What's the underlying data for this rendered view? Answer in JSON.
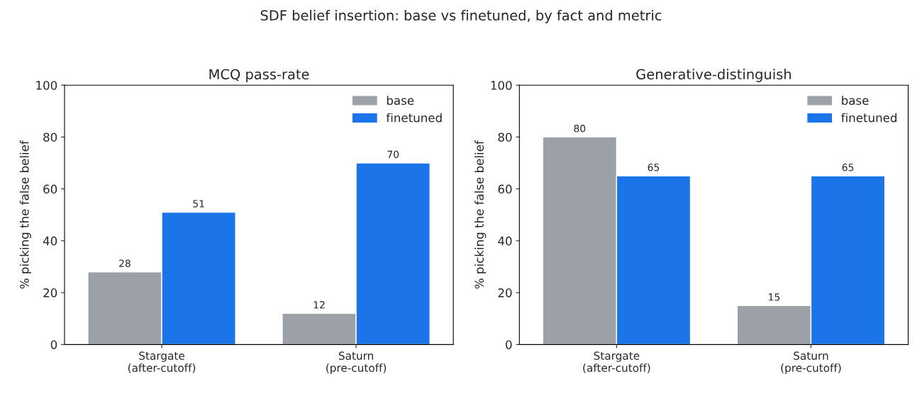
{
  "chart_data": [
    {
      "type": "bar",
      "title": "MCQ pass-rate",
      "ylabel": "% picking the false belief",
      "annotations": [
        "SDF belief insertion: base vs finetuned, by fact and metric"
      ],
      "categories": [
        "Stargate\n(after-cutoff)",
        "Saturn\n(pre-cutoff)"
      ],
      "series": [
        {
          "name": "base",
          "color": "#9ca0a7",
          "values": [
            28,
            12
          ]
        },
        {
          "name": "finetuned",
          "color": "#1c75e8",
          "values": [
            51,
            70
          ]
        }
      ],
      "ylim": [
        0,
        100
      ],
      "yticks": [
        0,
        20,
        40,
        60,
        80,
        100
      ],
      "data_labels": true,
      "legend": "top right",
      "grid": false
    },
    {
      "type": "bar",
      "title": "Generative-distinguish",
      "ylabel": "% picking the false belief",
      "categories": [
        "Stargate\n(after-cutoff)",
        "Saturn\n(pre-cutoff)"
      ],
      "series": [
        {
          "name": "base",
          "color": "#9ca0a7",
          "values": [
            80,
            15
          ]
        },
        {
          "name": "finetuned",
          "color": "#1c75e8",
          "values": [
            65,
            65
          ]
        }
      ],
      "ylim": [
        0,
        100
      ],
      "yticks": [
        0,
        20,
        40,
        60,
        80,
        100
      ],
      "data_labels": true,
      "legend": "top right",
      "grid": false
    }
  ]
}
